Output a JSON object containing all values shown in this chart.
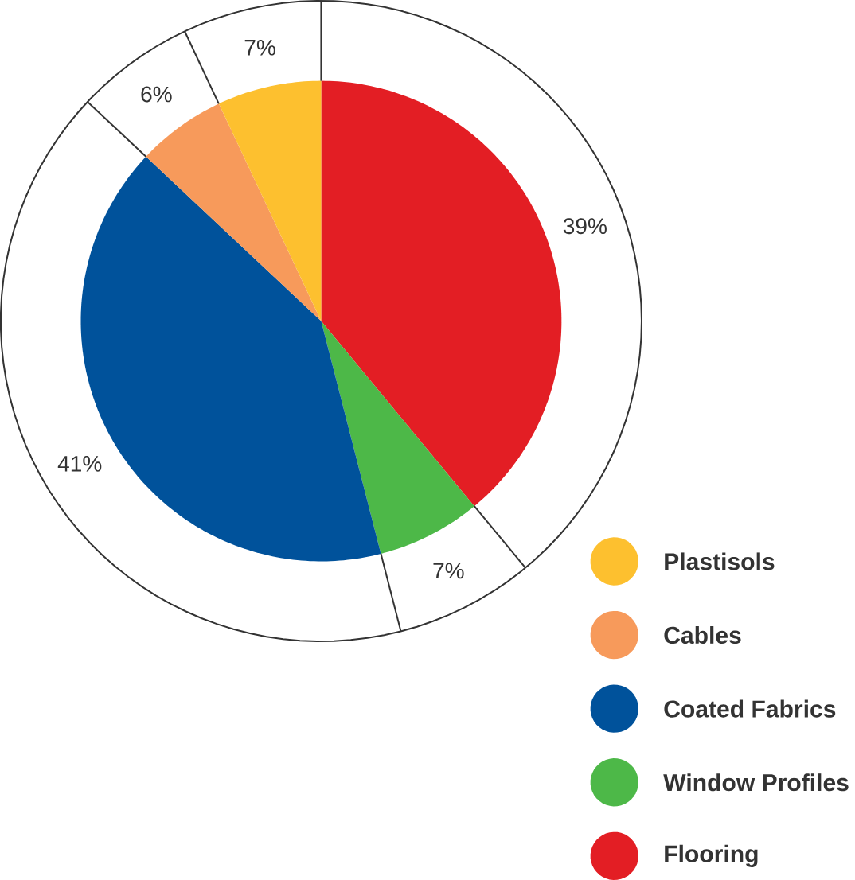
{
  "chart_data": {
    "type": "pie",
    "categories": [
      "Flooring",
      "Window Profiles",
      "Coated Fabrics",
      "Cables",
      "Plastisols"
    ],
    "values": [
      39,
      7,
      41,
      6,
      7
    ],
    "value_labels": [
      "39%",
      "7%",
      "41%",
      "6%",
      "7%"
    ],
    "colors": [
      "#e31e24",
      "#4db848",
      "#00529b",
      "#f79a5b",
      "#fdc02f"
    ],
    "legend": "bottom right"
  }
}
